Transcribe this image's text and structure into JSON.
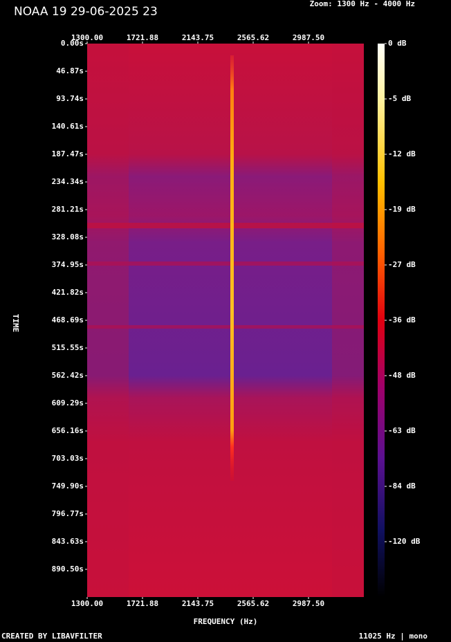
{
  "chart_data": {
    "type": "spectrogram",
    "title": "NOAA 19 29-06-2025 23",
    "zoom_label": "Zoom: 1300 Hz - 4000 Hz",
    "x_label": "FREQUENCY (Hz)",
    "y_label": "TIME",
    "footer_left": "CREATED BY LIBAVFILTER",
    "footer_right": "11025 Hz | mono",
    "xlim": [
      1300,
      3409.375
    ],
    "xticks": [
      {
        "value": 1300,
        "label": "1300.00"
      },
      {
        "value": 1721.88,
        "label": "1721.88"
      },
      {
        "value": 2143.75,
        "label": "2143.75"
      },
      {
        "value": 2565.62,
        "label": "2565.62"
      },
      {
        "value": 2987.5,
        "label": "2987.50"
      }
    ],
    "ylim": [
      0,
      937.4
    ],
    "yticks": [
      {
        "value": 0,
        "label": "0.00s"
      },
      {
        "value": 46.87,
        "label": "46.87s"
      },
      {
        "value": 93.74,
        "label": "93.74s"
      },
      {
        "value": 140.61,
        "label": "140.61s"
      },
      {
        "value": 187.47,
        "label": "187.47s"
      },
      {
        "value": 234.34,
        "label": "234.34s"
      },
      {
        "value": 281.21,
        "label": "281.21s"
      },
      {
        "value": 328.08,
        "label": "328.08s"
      },
      {
        "value": 374.95,
        "label": "374.95s"
      },
      {
        "value": 421.82,
        "label": "421.82s"
      },
      {
        "value": 468.69,
        "label": "468.69s"
      },
      {
        "value": 515.55,
        "label": "515.55s"
      },
      {
        "value": 562.42,
        "label": "562.42s"
      },
      {
        "value": 609.29,
        "label": "609.29s"
      },
      {
        "value": 656.16,
        "label": "656.16s"
      },
      {
        "value": 703.03,
        "label": "703.03s"
      },
      {
        "value": 749.9,
        "label": "749.90s"
      },
      {
        "value": 796.77,
        "label": "796.77s"
      },
      {
        "value": 843.63,
        "label": "843.63s"
      },
      {
        "value": 890.5,
        "label": "890.50s"
      }
    ],
    "colorbar_ticks": [
      {
        "value": 0,
        "label": "0 dB"
      },
      {
        "value": -5,
        "label": "-5 dB"
      },
      {
        "value": -12,
        "label": "-12 dB"
      },
      {
        "value": -19,
        "label": "-19 dB"
      },
      {
        "value": -27,
        "label": "-27 dB"
      },
      {
        "value": -36,
        "label": "-36 dB"
      },
      {
        "value": -48,
        "label": "-48 dB"
      },
      {
        "value": -63,
        "label": "-63 dB"
      },
      {
        "value": -84,
        "label": "-84 dB"
      },
      {
        "value": -120,
        "label": "-120 dB"
      }
    ]
  }
}
